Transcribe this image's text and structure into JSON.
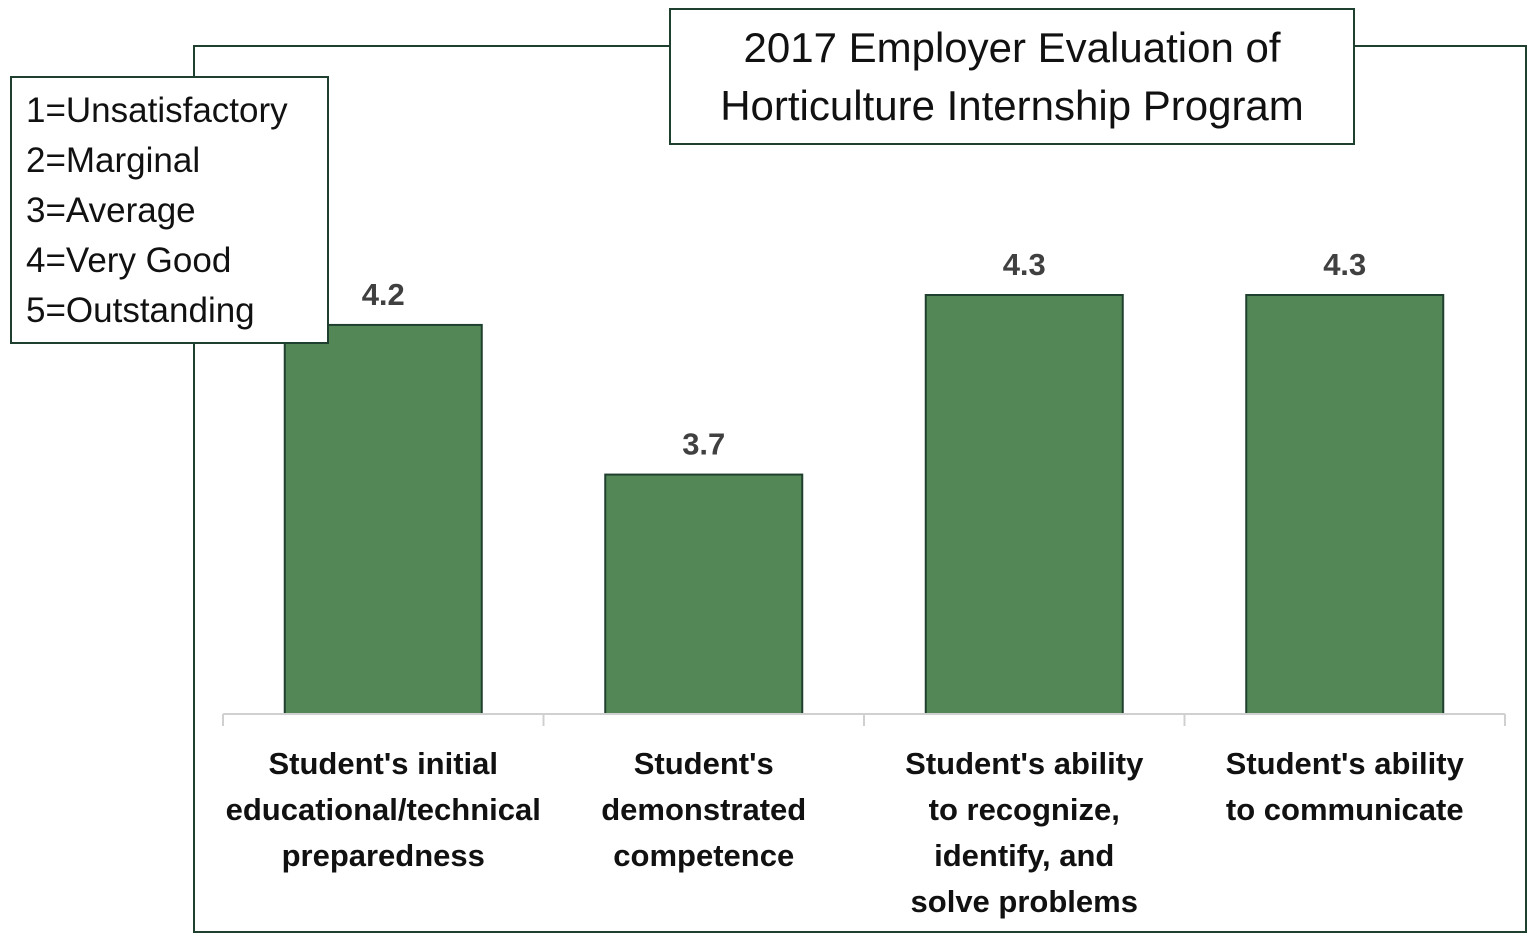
{
  "title_lines": [
    "2017 Employer Evaluation of",
    "Horticulture Internship Program"
  ],
  "legend_lines": [
    "1=Unsatisfactory",
    "2=Marginal",
    "3=Average",
    "4=Very Good",
    "5=Outstanding"
  ],
  "colors": {
    "bar": "#538856",
    "bar_stroke": "#1f3f2f",
    "axis": "#d0d0d0",
    "frame": "#1f3f2f"
  },
  "chart_data": {
    "type": "bar",
    "title": "2017 Employer Evaluation of Horticulture Internship Program",
    "categories": [
      [
        "Student's initial",
        "educational/technical",
        "preparedness"
      ],
      [
        "Student's",
        "demonstrated",
        "competence"
      ],
      [
        "Student's ability",
        "to recognize,",
        "identify, and",
        "solve problems"
      ],
      [
        "Student's ability",
        "to communicate"
      ]
    ],
    "values": [
      4.2,
      3.7,
      4.3,
      4.3
    ],
    "value_labels": [
      "4.2",
      "3.7",
      "4.3",
      "4.3"
    ],
    "ylim": [
      2.9,
      4.5
    ],
    "xlabel": "",
    "ylabel": "",
    "grid": false
  }
}
